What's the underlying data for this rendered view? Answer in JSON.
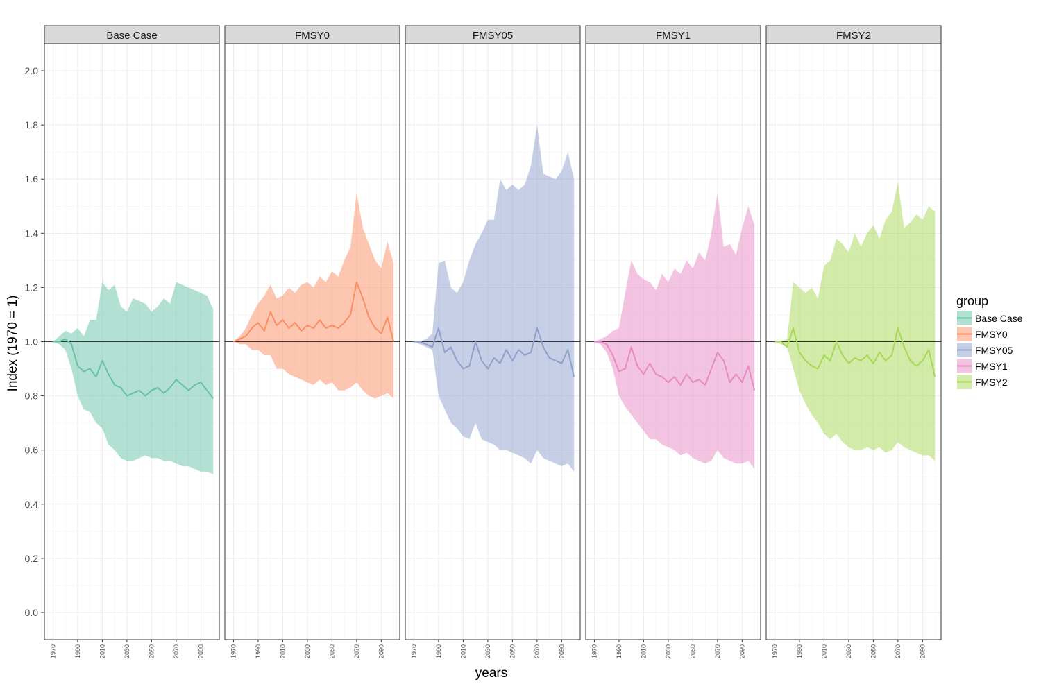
{
  "chart_data": {
    "type": "area",
    "facet_type": "ribbon-with-median-line",
    "ylabel": "Index (1970 = 1)",
    "xlabel": "years",
    "ylim": [
      -0.1,
      2.1
    ],
    "xlim": [
      1963,
      2105
    ],
    "y_ticks": [
      0.0,
      0.2,
      0.4,
      0.6,
      0.8,
      1.0,
      1.2,
      1.4,
      1.6,
      1.8,
      2.0
    ],
    "x_ticks": [
      1970,
      1990,
      2010,
      2030,
      2050,
      2070,
      2090
    ],
    "grid": true,
    "reference_line": 1.0,
    "legend": {
      "title": "group",
      "position": "right",
      "items": [
        {
          "label": "Base Case",
          "color": "#66c2a5"
        },
        {
          "label": "FMSY0",
          "color": "#fc8d62"
        },
        {
          "label": "FMSY05",
          "color": "#8da0cb"
        },
        {
          "label": "FMSY1",
          "color": "#e78ac3"
        },
        {
          "label": "FMSY2",
          "color": "#a6d854"
        }
      ]
    },
    "panels": [
      {
        "title": "Base Case",
        "color": "#66c2a5",
        "x": [
          1970,
          1975,
          1980,
          1985,
          1990,
          1995,
          2000,
          2005,
          2010,
          2015,
          2020,
          2025,
          2030,
          2035,
          2040,
          2045,
          2050,
          2055,
          2060,
          2065,
          2070,
          2075,
          2080,
          2085,
          2090,
          2095,
          2100
        ],
        "median": [
          1.0,
          1.0,
          1.01,
          0.99,
          0.91,
          0.89,
          0.9,
          0.87,
          0.93,
          0.88,
          0.84,
          0.83,
          0.8,
          0.81,
          0.82,
          0.8,
          0.82,
          0.83,
          0.81,
          0.83,
          0.86,
          0.84,
          0.82,
          0.84,
          0.85,
          0.82,
          0.79
        ],
        "upper": [
          1.0,
          1.02,
          1.04,
          1.03,
          1.05,
          1.02,
          1.08,
          1.08,
          1.22,
          1.19,
          1.21,
          1.13,
          1.11,
          1.16,
          1.15,
          1.14,
          1.11,
          1.13,
          1.16,
          1.14,
          1.22,
          1.21,
          1.2,
          1.19,
          1.18,
          1.17,
          1.12
        ],
        "lower": [
          1.0,
          0.99,
          0.97,
          0.9,
          0.8,
          0.75,
          0.74,
          0.7,
          0.68,
          0.62,
          0.6,
          0.57,
          0.56,
          0.56,
          0.57,
          0.58,
          0.57,
          0.57,
          0.56,
          0.56,
          0.55,
          0.54,
          0.54,
          0.53,
          0.52,
          0.52,
          0.51
        ]
      },
      {
        "title": "FMSY0",
        "color": "#fc8d62",
        "x": [
          1970,
          1975,
          1980,
          1985,
          1990,
          1995,
          2000,
          2005,
          2010,
          2015,
          2020,
          2025,
          2030,
          2035,
          2040,
          2045,
          2050,
          2055,
          2060,
          2065,
          2070,
          2075,
          2080,
          2085,
          2090,
          2095,
          2100
        ],
        "median": [
          1.0,
          1.01,
          1.02,
          1.05,
          1.07,
          1.04,
          1.11,
          1.06,
          1.08,
          1.05,
          1.07,
          1.04,
          1.06,
          1.05,
          1.08,
          1.05,
          1.06,
          1.05,
          1.07,
          1.1,
          1.22,
          1.16,
          1.09,
          1.05,
          1.03,
          1.09,
          1.0
        ],
        "upper": [
          1.0,
          1.02,
          1.05,
          1.1,
          1.14,
          1.17,
          1.21,
          1.16,
          1.17,
          1.2,
          1.18,
          1.21,
          1.22,
          1.2,
          1.24,
          1.22,
          1.26,
          1.24,
          1.3,
          1.35,
          1.55,
          1.42,
          1.36,
          1.3,
          1.27,
          1.37,
          1.29
        ],
        "lower": [
          1.0,
          0.99,
          0.99,
          0.97,
          0.97,
          0.95,
          0.95,
          0.9,
          0.9,
          0.88,
          0.87,
          0.86,
          0.85,
          0.84,
          0.86,
          0.84,
          0.85,
          0.82,
          0.82,
          0.83,
          0.85,
          0.82,
          0.8,
          0.79,
          0.8,
          0.81,
          0.79
        ]
      },
      {
        "title": "FMSY05",
        "color": "#8da0cb",
        "x": [
          1970,
          1975,
          1980,
          1985,
          1990,
          1995,
          2000,
          2005,
          2010,
          2015,
          2020,
          2025,
          2030,
          2035,
          2040,
          2045,
          2050,
          2055,
          2060,
          2065,
          2070,
          2075,
          2080,
          2085,
          2090,
          2095,
          2100
        ],
        "median": [
          1.0,
          1.0,
          0.99,
          0.98,
          1.05,
          0.96,
          0.98,
          0.93,
          0.9,
          0.91,
          1.0,
          0.93,
          0.9,
          0.94,
          0.92,
          0.97,
          0.93,
          0.97,
          0.95,
          0.96,
          1.05,
          0.98,
          0.94,
          0.93,
          0.92,
          0.97,
          0.87
        ],
        "upper": [
          1.0,
          1.0,
          1.01,
          1.03,
          1.29,
          1.3,
          1.2,
          1.18,
          1.22,
          1.3,
          1.36,
          1.4,
          1.45,
          1.45,
          1.6,
          1.56,
          1.58,
          1.56,
          1.58,
          1.65,
          1.8,
          1.62,
          1.61,
          1.6,
          1.63,
          1.7,
          1.6
        ],
        "lower": [
          1.0,
          0.99,
          0.98,
          0.97,
          0.8,
          0.75,
          0.7,
          0.68,
          0.65,
          0.64,
          0.7,
          0.64,
          0.63,
          0.62,
          0.6,
          0.6,
          0.59,
          0.58,
          0.57,
          0.55,
          0.6,
          0.57,
          0.56,
          0.55,
          0.54,
          0.55,
          0.52
        ]
      },
      {
        "title": "FMSY1",
        "color": "#e78ac3",
        "x": [
          1970,
          1975,
          1980,
          1985,
          1990,
          1995,
          2000,
          2005,
          2010,
          2015,
          2020,
          2025,
          2030,
          2035,
          2040,
          2045,
          2050,
          2055,
          2060,
          2065,
          2070,
          2075,
          2080,
          2085,
          2090,
          2095,
          2100
        ],
        "median": [
          1.0,
          1.0,
          0.99,
          0.95,
          0.89,
          0.9,
          0.98,
          0.91,
          0.88,
          0.92,
          0.88,
          0.87,
          0.85,
          0.87,
          0.84,
          0.88,
          0.85,
          0.86,
          0.84,
          0.9,
          0.96,
          0.93,
          0.85,
          0.88,
          0.85,
          0.91,
          0.82
        ],
        "upper": [
          1.0,
          1.01,
          1.02,
          1.04,
          1.05,
          1.18,
          1.3,
          1.25,
          1.23,
          1.22,
          1.19,
          1.25,
          1.22,
          1.27,
          1.25,
          1.3,
          1.27,
          1.33,
          1.3,
          1.4,
          1.55,
          1.35,
          1.36,
          1.32,
          1.42,
          1.5,
          1.43
        ],
        "lower": [
          1.0,
          0.99,
          0.96,
          0.9,
          0.8,
          0.76,
          0.73,
          0.7,
          0.67,
          0.64,
          0.64,
          0.62,
          0.61,
          0.6,
          0.58,
          0.59,
          0.57,
          0.56,
          0.55,
          0.56,
          0.6,
          0.57,
          0.56,
          0.55,
          0.55,
          0.56,
          0.53
        ]
      },
      {
        "title": "FMSY2",
        "color": "#a6d854",
        "x": [
          1970,
          1975,
          1980,
          1985,
          1990,
          1995,
          2000,
          2005,
          2010,
          2015,
          2020,
          2025,
          2030,
          2035,
          2040,
          2045,
          2050,
          2055,
          2060,
          2065,
          2070,
          2075,
          2080,
          2085,
          2090,
          2095,
          2100
        ],
        "median": [
          1.0,
          1.0,
          0.98,
          1.05,
          0.96,
          0.93,
          0.91,
          0.9,
          0.95,
          0.93,
          1.0,
          0.95,
          0.92,
          0.94,
          0.93,
          0.95,
          0.92,
          0.96,
          0.93,
          0.95,
          1.05,
          0.98,
          0.93,
          0.91,
          0.93,
          0.97,
          0.87
        ],
        "upper": [
          1.0,
          1.0,
          1.01,
          1.22,
          1.2,
          1.18,
          1.2,
          1.16,
          1.28,
          1.3,
          1.38,
          1.36,
          1.33,
          1.4,
          1.35,
          1.4,
          1.43,
          1.38,
          1.45,
          1.48,
          1.59,
          1.42,
          1.44,
          1.47,
          1.45,
          1.5,
          1.48
        ],
        "lower": [
          1.0,
          0.99,
          0.98,
          0.9,
          0.82,
          0.77,
          0.73,
          0.7,
          0.66,
          0.64,
          0.66,
          0.63,
          0.61,
          0.6,
          0.6,
          0.61,
          0.6,
          0.61,
          0.59,
          0.6,
          0.63,
          0.61,
          0.6,
          0.59,
          0.58,
          0.58,
          0.56
        ]
      }
    ]
  }
}
